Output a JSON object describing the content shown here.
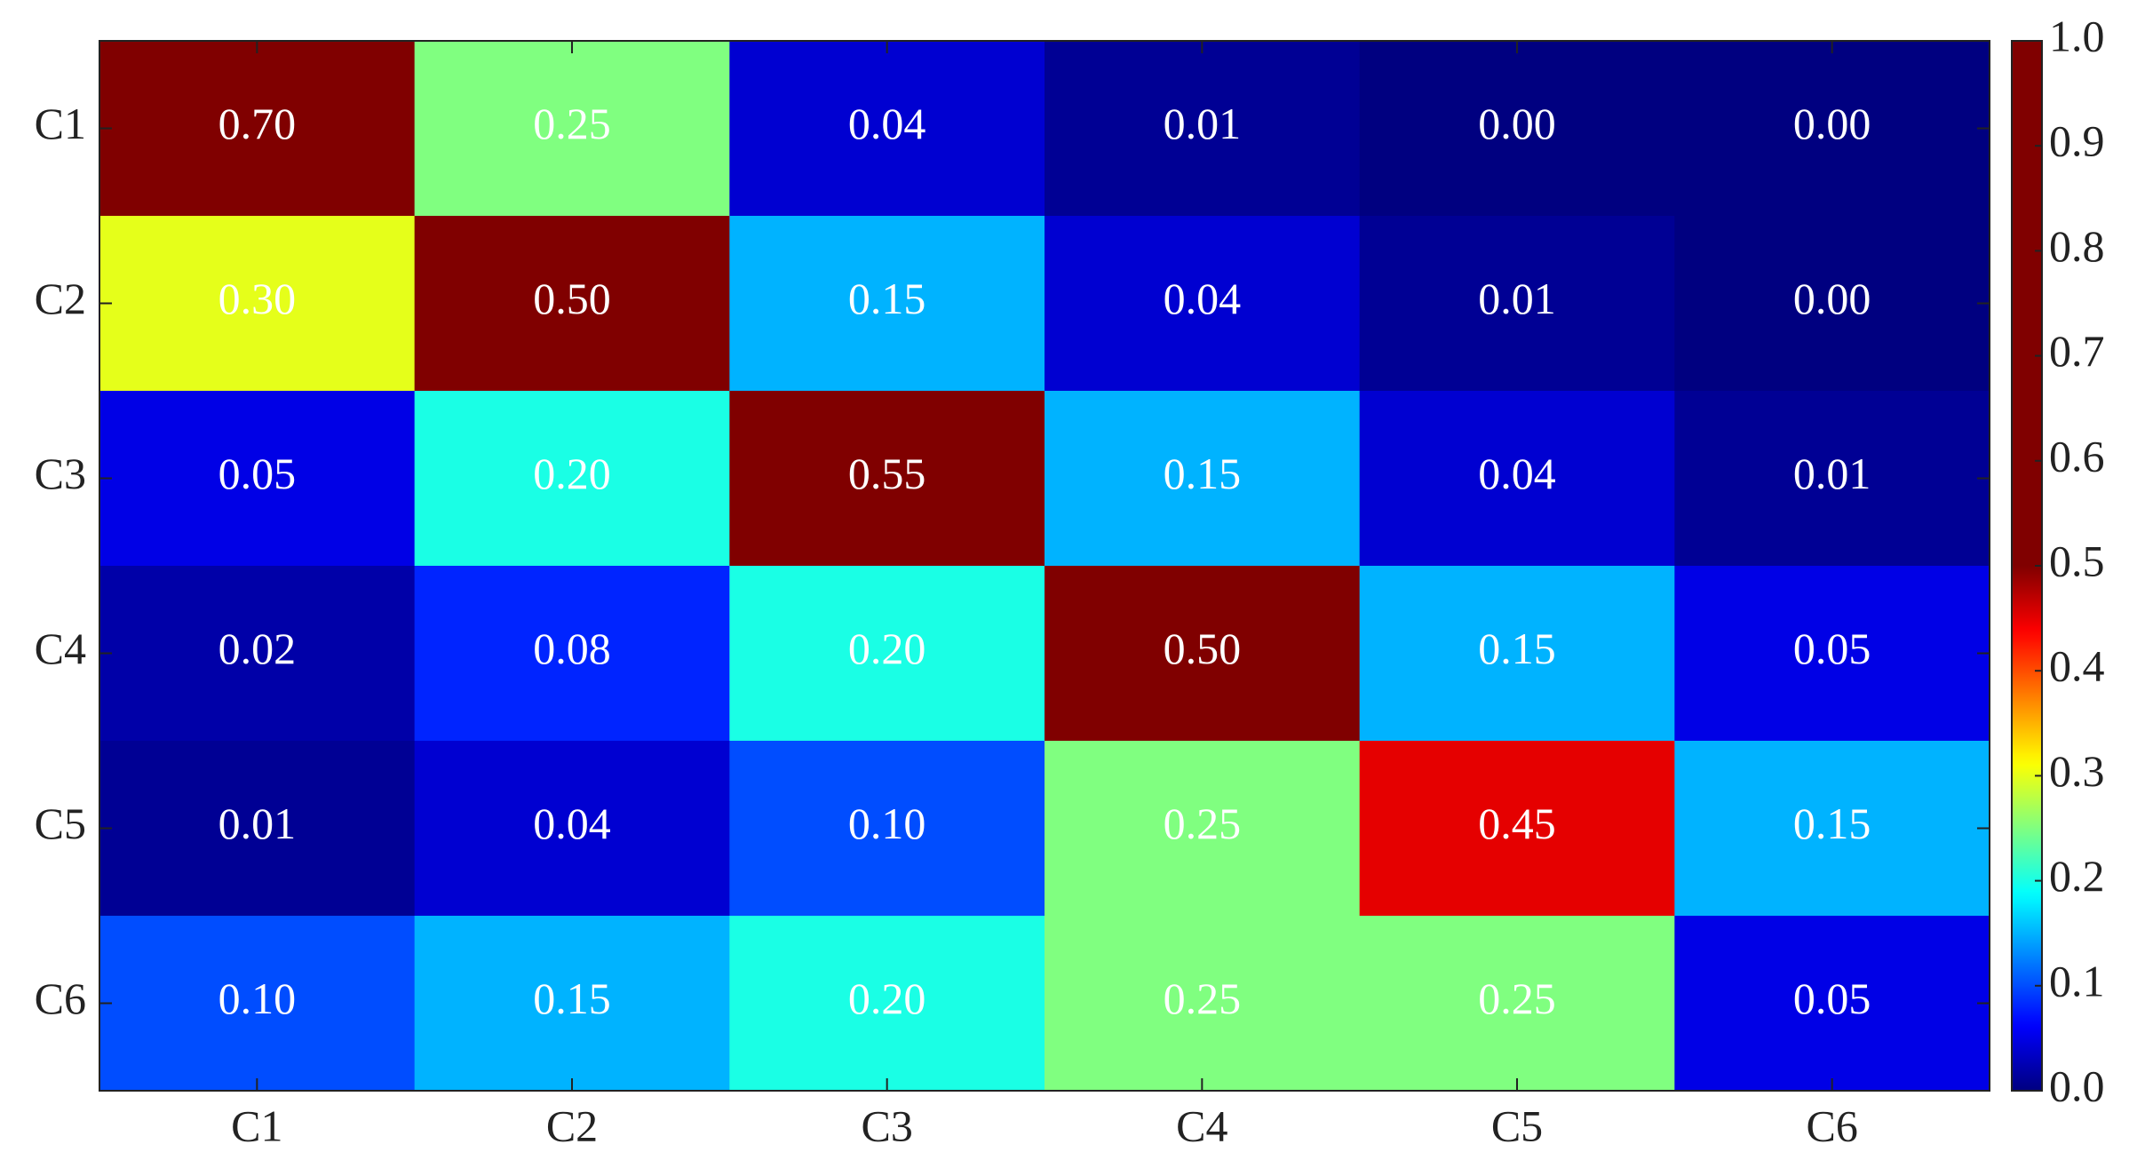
{
  "chart_data": {
    "type": "heatmap",
    "x_categories": [
      "C1",
      "C2",
      "C3",
      "C4",
      "C5",
      "C6"
    ],
    "y_categories": [
      "C1",
      "C2",
      "C3",
      "C4",
      "C5",
      "C6"
    ],
    "values": [
      [
        0.7,
        0.25,
        0.04,
        0.01,
        0.0,
        0.0
      ],
      [
        0.3,
        0.5,
        0.15,
        0.04,
        0.01,
        0.0
      ],
      [
        0.05,
        0.2,
        0.55,
        0.15,
        0.04,
        0.01
      ],
      [
        0.02,
        0.08,
        0.2,
        0.5,
        0.15,
        0.05
      ],
      [
        0.01,
        0.04,
        0.1,
        0.25,
        0.45,
        0.15
      ],
      [
        0.1,
        0.15,
        0.2,
        0.25,
        0.25,
        0.05
      ]
    ],
    "value_labels": [
      [
        "0.70",
        "0.25",
        "0.04",
        "0.01",
        "0.00",
        "0.00"
      ],
      [
        "0.30",
        "0.50",
        "0.15",
        "0.04",
        "0.01",
        "0.00"
      ],
      [
        "0.05",
        "0.20",
        "0.55",
        "0.15",
        "0.04",
        "0.01"
      ],
      [
        "0.02",
        "0.08",
        "0.20",
        "0.50",
        "0.15",
        "0.05"
      ],
      [
        "0.01",
        "0.04",
        "0.10",
        "0.25",
        "0.45",
        "0.15"
      ],
      [
        "0.10",
        "0.15",
        "0.20",
        "0.25",
        "0.25",
        "0.05"
      ]
    ],
    "colormap": "jet",
    "color_range": [
      0,
      0.5
    ],
    "colorbar_lim": [
      0,
      1
    ],
    "colorbar_ticks": [
      {
        "value": 0,
        "label": "0.0"
      },
      0.1,
      0.2,
      0.3,
      0.4,
      0.5,
      0.6,
      0.7,
      0.8,
      0.9,
      {
        "value": 1,
        "label": "1.0"
      }
    ]
  }
}
